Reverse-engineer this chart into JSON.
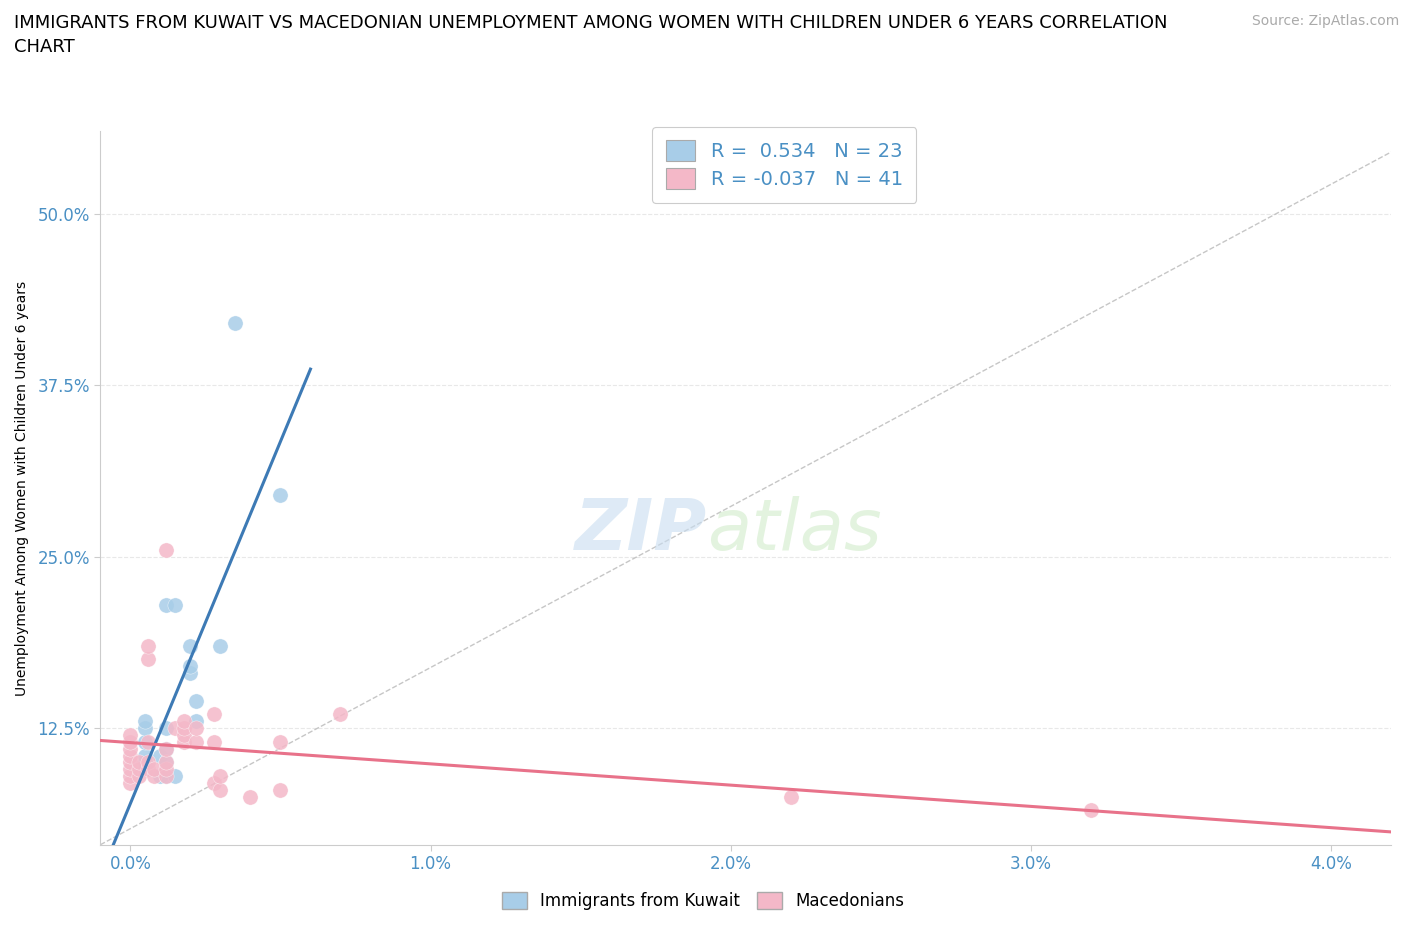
{
  "title": "IMMIGRANTS FROM KUWAIT VS MACEDONIAN UNEMPLOYMENT AMONG WOMEN WITH CHILDREN UNDER 6 YEARS CORRELATION\nCHART",
  "source": "Source: ZipAtlas.com",
  "ylabel": "Unemployment Among Women with Children Under 6 years",
  "x_tick_labels": [
    "0.0%",
    "1.0%",
    "2.0%",
    "3.0%",
    "4.0%"
  ],
  "x_tick_values": [
    0.0,
    0.01,
    0.02,
    0.03,
    0.04
  ],
  "y_tick_labels": [
    "12.5%",
    "25.0%",
    "37.5%",
    "50.0%"
  ],
  "y_tick_values": [
    0.125,
    0.25,
    0.375,
    0.5
  ],
  "xlim": [
    -0.001,
    0.042
  ],
  "ylim": [
    0.04,
    0.56
  ],
  "blue_R": 0.534,
  "blue_N": 23,
  "pink_R": -0.037,
  "pink_N": 41,
  "blue_color": "#a8cde8",
  "pink_color": "#f4b8c8",
  "blue_line_color": "#3d7ab5",
  "pink_line_color": "#e8728a",
  "diagonal_line_color": "#b8b8b8",
  "watermark_zip": "ZIP",
  "watermark_atlas": "atlas",
  "legend_label_blue": "Immigrants from Kuwait",
  "legend_label_pink": "Macedonians",
  "blue_points": [
    [
      0.0005,
      0.095
    ],
    [
      0.0005,
      0.1
    ],
    [
      0.0005,
      0.105
    ],
    [
      0.0005,
      0.115
    ],
    [
      0.0005,
      0.125
    ],
    [
      0.0005,
      0.13
    ],
    [
      0.001,
      0.09
    ],
    [
      0.001,
      0.105
    ],
    [
      0.0012,
      0.09
    ],
    [
      0.0012,
      0.1
    ],
    [
      0.0012,
      0.11
    ],
    [
      0.0012,
      0.125
    ],
    [
      0.0012,
      0.215
    ],
    [
      0.0015,
      0.215
    ],
    [
      0.0015,
      0.09
    ],
    [
      0.002,
      0.165
    ],
    [
      0.002,
      0.17
    ],
    [
      0.002,
      0.185
    ],
    [
      0.0022,
      0.13
    ],
    [
      0.0022,
      0.145
    ],
    [
      0.003,
      0.185
    ],
    [
      0.0035,
      0.42
    ],
    [
      0.005,
      0.295
    ]
  ],
  "pink_points": [
    [
      0.0,
      0.085
    ],
    [
      0.0,
      0.09
    ],
    [
      0.0,
      0.095
    ],
    [
      0.0,
      0.1
    ],
    [
      0.0,
      0.105
    ],
    [
      0.0,
      0.11
    ],
    [
      0.0,
      0.115
    ],
    [
      0.0,
      0.12
    ],
    [
      0.0003,
      0.09
    ],
    [
      0.0003,
      0.095
    ],
    [
      0.0003,
      0.1
    ],
    [
      0.0006,
      0.095
    ],
    [
      0.0006,
      0.1
    ],
    [
      0.0006,
      0.115
    ],
    [
      0.0006,
      0.175
    ],
    [
      0.0006,
      0.185
    ],
    [
      0.0008,
      0.09
    ],
    [
      0.0008,
      0.095
    ],
    [
      0.0012,
      0.09
    ],
    [
      0.0012,
      0.095
    ],
    [
      0.0012,
      0.1
    ],
    [
      0.0012,
      0.11
    ],
    [
      0.0012,
      0.255
    ],
    [
      0.0015,
      0.125
    ],
    [
      0.0018,
      0.115
    ],
    [
      0.0018,
      0.12
    ],
    [
      0.0018,
      0.125
    ],
    [
      0.0018,
      0.13
    ],
    [
      0.0022,
      0.115
    ],
    [
      0.0022,
      0.125
    ],
    [
      0.0028,
      0.085
    ],
    [
      0.0028,
      0.115
    ],
    [
      0.0028,
      0.135
    ],
    [
      0.003,
      0.08
    ],
    [
      0.003,
      0.09
    ],
    [
      0.004,
      0.075
    ],
    [
      0.005,
      0.08
    ],
    [
      0.005,
      0.115
    ],
    [
      0.007,
      0.135
    ],
    [
      0.022,
      0.075
    ],
    [
      0.032,
      0.065
    ]
  ],
  "title_fontsize": 13,
  "axis_label_fontsize": 10,
  "tick_fontsize": 12,
  "source_fontsize": 10,
  "watermark_fontsize_zip": 52,
  "watermark_fontsize_atlas": 52,
  "background_color": "#ffffff",
  "grid_color": "#e8e8e8"
}
